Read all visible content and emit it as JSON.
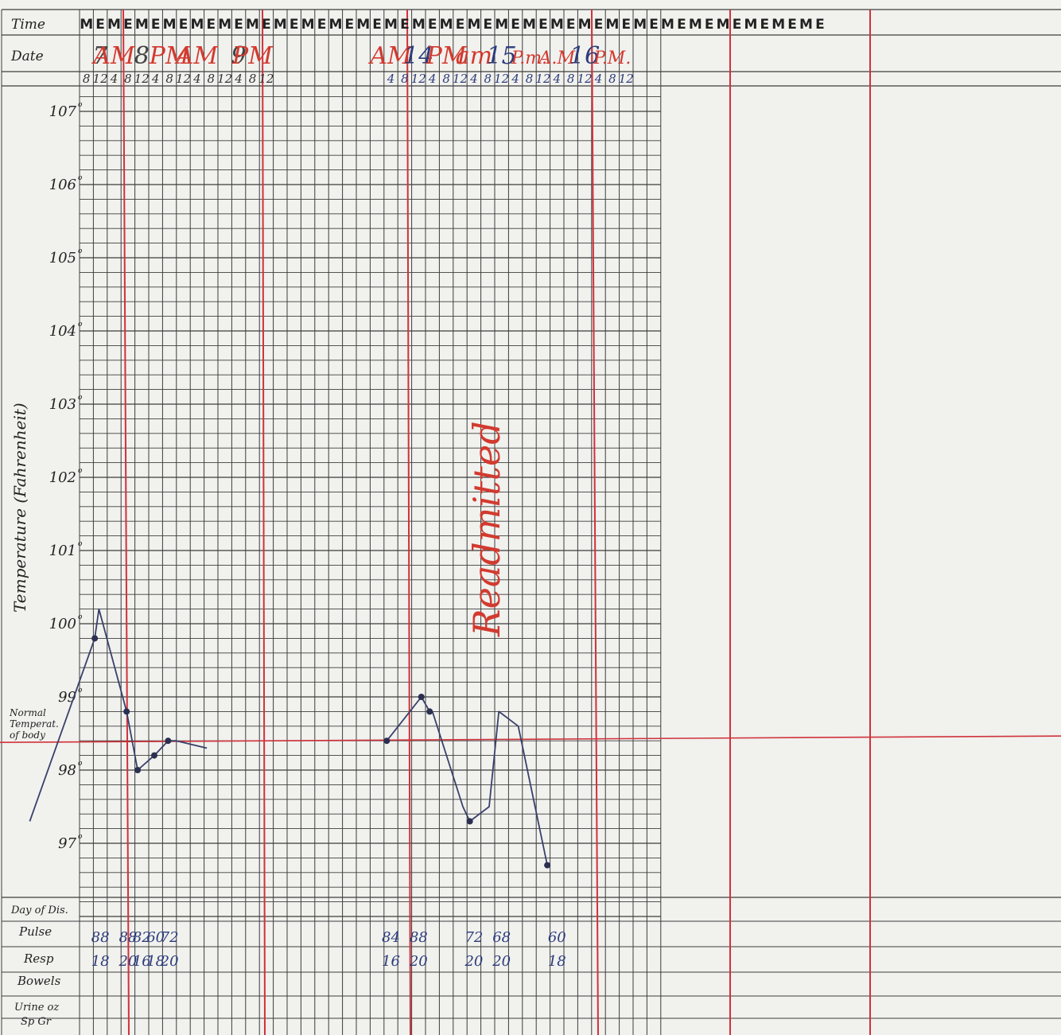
{
  "chart_data": {
    "type": "line",
    "title": "",
    "ylabel": "Temperature (Fahrenheit)",
    "ylim": [
      96.0,
      107.5
    ],
    "y_ticks": [
      "107",
      "106",
      "105",
      "104",
      "103",
      "102",
      "101",
      "100",
      "99",
      "98",
      "97"
    ],
    "normal_label": [
      "Normal",
      "Temperat.",
      "of body"
    ],
    "normal_value": 98.4,
    "row_labels": {
      "time": "Time",
      "date": "Date",
      "day_of_dis": "Day of Dis.",
      "pulse": "Pulse",
      "resp": "Resp",
      "bowels": "Bowels",
      "urine": "Urine oz",
      "spgr": "Sp Gr"
    },
    "me_letters": [
      "M",
      "E"
    ],
    "me_count": 27,
    "hour_labels": [
      "8",
      "12",
      "4",
      "8",
      "12",
      "4",
      "8",
      "12",
      "4",
      "8",
      "12",
      "4",
      "8",
      "12",
      "",
      "",
      "",
      "",
      "",
      "",
      "",
      "",
      "4",
      "8",
      "12",
      "4",
      "8",
      "12",
      "4",
      "8",
      "12",
      "4",
      "8",
      "12",
      "4",
      "8",
      "12",
      "4",
      "8",
      "12"
    ],
    "date_labels": [
      {
        "col": 1,
        "text": "7",
        "color": "#444"
      },
      {
        "col": 2,
        "text": "AM",
        "color": "#d23a2f"
      },
      {
        "col": 4,
        "text": "8",
        "color": "#444"
      },
      {
        "col": 6,
        "text": "PM",
        "color": "#d23a2f"
      },
      {
        "col": 8,
        "text": "AM",
        "color": "#d23a2f"
      },
      {
        "col": 11,
        "text": "9",
        "color": "#444"
      },
      {
        "col": 12,
        "text": "PM",
        "color": "#d23a2f"
      },
      {
        "col": 22,
        "text": "AM",
        "color": "#d23a2f"
      },
      {
        "col": 24,
        "text": "14",
        "color": "#2c3c7a"
      },
      {
        "col": 26,
        "text": "PM",
        "color": "#d23a2f"
      },
      {
        "col": 28,
        "text": "am",
        "color": "#d23a2f"
      },
      {
        "col": 30,
        "text": "15",
        "color": "#2c3c7a"
      },
      {
        "col": 32,
        "text": "P.m.",
        "color": "#d23a2f"
      },
      {
        "col": 34,
        "text": "A.M",
        "color": "#d23a2f"
      },
      {
        "col": 36,
        "text": "16",
        "color": "#2c3c7a"
      },
      {
        "col": 38,
        "text": "P.M.",
        "color": "#d23a2f"
      }
    ],
    "annotation": "Readmitted",
    "series": [
      {
        "x": [
          -3.6,
          1.1,
          1.4,
          3.4,
          4.2,
          5.4,
          6.4,
          7.0,
          9.2
        ],
        "y": [
          97.3,
          99.8,
          100.2,
          98.8,
          98.0,
          98.2,
          98.4,
          98.4,
          98.3
        ]
      },
      {
        "x": [
          22.2,
          24.7,
          25.3
        ],
        "y": [
          98.4,
          99.0,
          98.8
        ]
      },
      {
        "x": [
          25.5,
          27.7,
          28.2,
          29.6,
          30.3,
          31.7,
          33.8
        ],
        "y": [
          98.8,
          97.5,
          97.3,
          97.5,
          98.8,
          98.6,
          96.7
        ]
      }
    ],
    "points": [
      {
        "x": 1.1,
        "y": 99.8
      },
      {
        "x": 3.4,
        "y": 98.8
      },
      {
        "x": 4.2,
        "y": 98.0
      },
      {
        "x": 5.4,
        "y": 98.2
      },
      {
        "x": 6.4,
        "y": 98.4
      },
      {
        "x": 22.2,
        "y": 98.4
      },
      {
        "x": 24.7,
        "y": 99.0
      },
      {
        "x": 25.3,
        "y": 98.8
      },
      {
        "x": 28.2,
        "y": 97.3
      },
      {
        "x": 33.8,
        "y": 96.7
      }
    ],
    "pulse": [
      {
        "col": 1,
        "text": "88"
      },
      {
        "col": 3,
        "text": "88"
      },
      {
        "col": 4,
        "text": "82"
      },
      {
        "col": 5,
        "text": "60"
      },
      {
        "col": 6,
        "text": "72"
      },
      {
        "col": 22,
        "text": "84"
      },
      {
        "col": 24,
        "text": "88"
      },
      {
        "col": 28,
        "text": "72"
      },
      {
        "col": 30,
        "text": "68"
      },
      {
        "col": 34,
        "text": "60"
      }
    ],
    "resp": [
      {
        "col": 1,
        "text": "18"
      },
      {
        "col": 3,
        "text": "20"
      },
      {
        "col": 4,
        "text": "16"
      },
      {
        "col": 5,
        "text": "18"
      },
      {
        "col": 6,
        "text": "20"
      },
      {
        "col": 22,
        "text": "16"
      },
      {
        "col": 24,
        "text": "20"
      },
      {
        "col": 28,
        "text": "20"
      },
      {
        "col": 30,
        "text": "20"
      },
      {
        "col": 34,
        "text": "18"
      }
    ]
  }
}
